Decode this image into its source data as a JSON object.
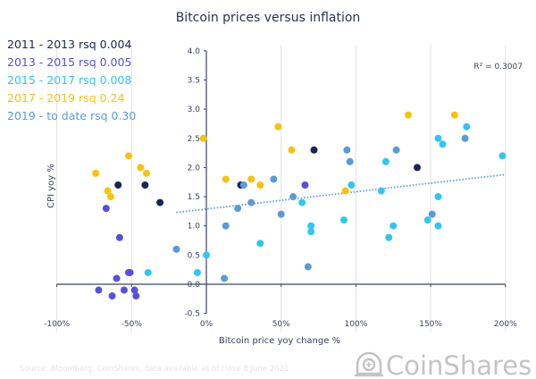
{
  "chart_data": {
    "type": "scatter",
    "title": "Bitcoin prices versus inflation",
    "xlabel": "Bitcoin price yoy change %",
    "ylabel": "CPI yoy %",
    "xlim": [
      -100,
      200
    ],
    "ylim": [
      -0.5,
      4.0
    ],
    "x_ticks": [
      -100,
      -50,
      0,
      50,
      100,
      150,
      200
    ],
    "x_tick_labels": [
      "-100%",
      "-50%",
      "0%",
      "50%",
      "100%",
      "150%",
      "200%"
    ],
    "y_ticks": [
      -0.5,
      0.0,
      0.5,
      1.0,
      1.5,
      2.0,
      2.5,
      3.0,
      3.5,
      4.0
    ],
    "y_tick_labels": [
      "-0.5",
      "0.0",
      "0.5",
      "1.0",
      "1.5",
      "2.0",
      "2.5",
      "3.0",
      "3.5",
      "4.0"
    ],
    "grid": "vertical",
    "legend_position": "top-left",
    "series": [
      {
        "name": "2011 - 2013 rsq 0.004",
        "color": "#1b2552",
        "points": [
          [
            -59,
            1.7
          ],
          [
            -41,
            1.7
          ],
          [
            -31,
            1.4
          ],
          [
            23,
            1.7
          ],
          [
            72,
            2.3
          ],
          [
            141,
            2.0
          ]
        ]
      },
      {
        "name": "2013 - 2015 rsq 0.005",
        "color": "#5552d6",
        "points": [
          [
            -67,
            1.3
          ],
          [
            -58,
            0.8
          ],
          [
            -52,
            0.2
          ],
          [
            -51,
            0.2
          ],
          [
            -60,
            0.1
          ],
          [
            -72,
            -0.1
          ],
          [
            -63,
            -0.2
          ],
          [
            -55,
            -0.1
          ],
          [
            -48,
            -0.1
          ],
          [
            -47,
            -0.2
          ],
          [
            66,
            1.7
          ]
        ]
      },
      {
        "name": "2015 - 2017 rsq 0.008",
        "color": "#34c5ef",
        "points": [
          [
            0,
            0.5
          ],
          [
            -39,
            0.2
          ],
          [
            -6,
            0.2
          ],
          [
            97,
            1.7
          ],
          [
            64,
            1.4
          ],
          [
            70,
            1.0
          ],
          [
            70,
            0.9
          ],
          [
            92,
            1.1
          ],
          [
            36,
            0.7
          ],
          [
            174,
            2.7
          ],
          [
            155,
            2.5
          ],
          [
            158,
            2.4
          ],
          [
            120,
            2.1
          ],
          [
            198,
            2.2
          ],
          [
            117,
            1.6
          ],
          [
            155,
            1.5
          ],
          [
            148,
            1.1
          ],
          [
            125,
            1.0
          ],
          [
            155,
            1.0
          ],
          [
            122,
            0.8
          ]
        ]
      },
      {
        "name": "2017 - 2019 rsq 0.24",
        "color": "#f9c211",
        "points": [
          [
            -74,
            1.9
          ],
          [
            -52,
            2.2
          ],
          [
            -44,
            2.0
          ],
          [
            -40,
            1.9
          ],
          [
            -66,
            1.6
          ],
          [
            -64,
            1.5
          ],
          [
            -2,
            2.5
          ],
          [
            48,
            2.7
          ],
          [
            57,
            2.3
          ],
          [
            13,
            1.8
          ],
          [
            30,
            1.8
          ],
          [
            36,
            1.7
          ],
          [
            93,
            1.6
          ],
          [
            135,
            2.9
          ],
          [
            166,
            2.9
          ]
        ]
      },
      {
        "name": "2019 - to date rsq 0.30",
        "color": "#5b9ad6",
        "points": [
          [
            -20,
            0.6
          ],
          [
            25,
            1.7
          ],
          [
            45,
            1.8
          ],
          [
            94,
            2.3
          ],
          [
            96,
            2.1
          ],
          [
            58,
            1.5
          ],
          [
            30,
            1.4
          ],
          [
            21,
            1.3
          ],
          [
            50,
            1.2
          ],
          [
            13,
            1.0
          ],
          [
            68,
            0.3
          ],
          [
            12,
            0.1
          ],
          [
            127,
            2.3
          ],
          [
            173,
            2.5
          ],
          [
            151,
            1.2
          ]
        ]
      }
    ],
    "trendline": {
      "series": "2019 - to date rsq 0.30",
      "style": "dotted",
      "color": "#5b9ad6",
      "x_range": [
        -20,
        200
      ],
      "y_at_start": 1.23,
      "y_at_end": 1.88,
      "label": "R² = 0.3007"
    },
    "annotations": [
      "R² = 0.3007"
    ]
  },
  "footer": {
    "source": "Source: Bloomberg, CoinShares, data available as of close 8 June 2021",
    "logo_text": "CoinShares"
  }
}
